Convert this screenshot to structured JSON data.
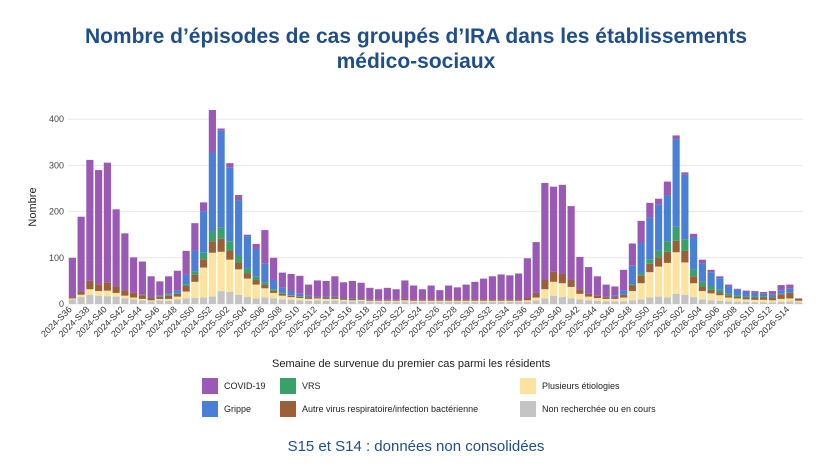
{
  "title_line1": "Nombre d’épisodes de cas groupés d’IRA dans les établissements",
  "title_line2": "médico-sociaux",
  "note": "S15 et S14 : données non consolidées",
  "legend_title": "Semaine de survenue du premier cas parmi les résidents",
  "colors": {
    "COVID-19": "#9b59b6",
    "Grippe": "#4a7fd6",
    "VRS": "#3aa06a",
    "Autre": "#9c6038",
    "Plusieurs": "#fde3a0",
    "NonRecherchee": "#c4c4c4"
  },
  "chart_data": {
    "type": "bar",
    "stacked": true,
    "ylabel": "Nombre",
    "xlabel": "Semaine de survenue du premier cas parmi les résidents",
    "ylim": [
      0,
      420
    ],
    "yticks": [
      0,
      100,
      200,
      300,
      400
    ],
    "grid": true,
    "legend_position": "bottom",
    "categories": [
      "2024-S36",
      "2024-S37",
      "2024-S38",
      "2024-S39",
      "2024-S40",
      "2024-S41",
      "2024-S42",
      "2024-S43",
      "2024-S44",
      "2024-S45",
      "2024-S46",
      "2024-S47",
      "2024-S48",
      "2024-S49",
      "2024-S50",
      "2024-S51",
      "2024-S52",
      "2025-S01",
      "2025-S02",
      "2025-S03",
      "2025-S04",
      "2025-S05",
      "2025-S06",
      "2025-S07",
      "2025-S08",
      "2025-S09",
      "2025-S10",
      "2025-S11",
      "2025-S12",
      "2025-S13",
      "2025-S14",
      "2025-S15",
      "2025-S16",
      "2025-S17",
      "2025-S18",
      "2025-S19",
      "2025-S20",
      "2025-S21",
      "2025-S22",
      "2025-S23",
      "2025-S24",
      "2025-S25",
      "2025-S26",
      "2025-S27",
      "2025-S28",
      "2025-S29",
      "2025-S30",
      "2025-S31",
      "2025-S32",
      "2025-S33",
      "2025-S34",
      "2025-S35",
      "2025-S36",
      "2025-S37",
      "2025-S38",
      "2025-S39",
      "2025-S40",
      "2025-S41",
      "2025-S42",
      "2025-S43",
      "2025-S44",
      "2025-S45",
      "2025-S46",
      "2025-S47",
      "2025-S48",
      "2025-S49",
      "2025-S50",
      "2025-S51",
      "2025-S52",
      "2026-S01",
      "2026-S02",
      "2026-S03",
      "2026-S04",
      "2026-S05",
      "2026-S06",
      "2026-S07",
      "2026-S08",
      "2026-S09",
      "2026-S10",
      "2026-S11",
      "2026-S12",
      "2026-S13",
      "2026-S14",
      "2026-S15"
    ],
    "tick_labels": [
      "2024-S36",
      "2024-S38",
      "2024-S40",
      "2024-S42",
      "2024-S44",
      "2024-S46",
      "2024-S48",
      "2024-S50",
      "2024-S52",
      "2025-S02",
      "2025-S04",
      "2025-S06",
      "2025-S08",
      "2025-S10",
      "2025-S12",
      "2025-S14",
      "2025-S16",
      "2025-S18",
      "2025-S20",
      "2025-S22",
      "2025-S24",
      "2025-S26",
      "2025-S28",
      "2025-S30",
      "2025-S32",
      "2025-S34",
      "2025-S36",
      "2025-S38",
      "2025-S40",
      "2025-S42",
      "2025-S44",
      "2025-S46",
      "2025-S48",
      "2025-S50",
      "2025-S52",
      "2026-S02",
      "2026-S04",
      "2026-S06",
      "2026-S08",
      "2026-S10",
      "2026-S12",
      "2026-S14"
    ],
    "series": [
      {
        "name": "Non recherchée ou en cours",
        "key": "NonRecherchee",
        "values": [
          10,
          15,
          20,
          18,
          17,
          16,
          12,
          10,
          8,
          6,
          8,
          7,
          10,
          12,
          13,
          14,
          16,
          28,
          26,
          20,
          15,
          12,
          14,
          12,
          10,
          9,
          8,
          7,
          8,
          7,
          8,
          6,
          6,
          7,
          5,
          5,
          5,
          5,
          6,
          5,
          5,
          5,
          5,
          5,
          5,
          5,
          5,
          5,
          5,
          5,
          5,
          5,
          5,
          8,
          12,
          18,
          15,
          12,
          10,
          8,
          7,
          6,
          6,
          6,
          8,
          10,
          14,
          16,
          14,
          22,
          20,
          15,
          10,
          8,
          7,
          6,
          5,
          5,
          4,
          4,
          4,
          5,
          6,
          4
        ]
      },
      {
        "name": "Plusieurs étiologies",
        "key": "Plusieurs",
        "values": [
          2,
          5,
          12,
          10,
          12,
          8,
          6,
          4,
          3,
          2,
          3,
          4,
          6,
          15,
          35,
          65,
          95,
          85,
          70,
          55,
          40,
          30,
          20,
          12,
          8,
          6,
          5,
          4,
          4,
          4,
          3,
          3,
          2,
          2,
          2,
          2,
          2,
          2,
          2,
          2,
          2,
          2,
          2,
          2,
          2,
          2,
          2,
          2,
          2,
          2,
          2,
          2,
          3,
          6,
          20,
          30,
          30,
          25,
          12,
          8,
          6,
          5,
          5,
          8,
          20,
          35,
          55,
          65,
          75,
          90,
          70,
          30,
          18,
          15,
          12,
          8,
          7,
          5,
          5,
          5,
          4,
          6,
          6,
          3
        ]
      },
      {
        "name": "Autre virus respiratoire/infection bactérienne",
        "key": "Autre",
        "values": [
          3,
          6,
          18,
          15,
          18,
          14,
          12,
          10,
          8,
          5,
          5,
          7,
          6,
          12,
          15,
          18,
          25,
          28,
          20,
          15,
          12,
          10,
          8,
          5,
          4,
          3,
          3,
          3,
          3,
          3,
          4,
          3,
          3,
          3,
          2,
          2,
          2,
          2,
          3,
          3,
          3,
          3,
          3,
          3,
          3,
          3,
          3,
          3,
          3,
          3,
          3,
          3,
          5,
          10,
          20,
          22,
          20,
          15,
          10,
          6,
          5,
          4,
          4,
          6,
          12,
          16,
          18,
          20,
          24,
          25,
          25,
          15,
          10,
          8,
          6,
          5,
          4,
          4,
          5,
          6,
          6,
          10,
          12,
          5
        ]
      },
      {
        "name": "VRS",
        "key": "VRS",
        "values": [
          0,
          0,
          0,
          0,
          0,
          0,
          0,
          0,
          1,
          1,
          1,
          2,
          2,
          4,
          8,
          14,
          22,
          24,
          20,
          15,
          10,
          7,
          5,
          3,
          2,
          1,
          1,
          1,
          0,
          0,
          0,
          0,
          0,
          0,
          0,
          0,
          0,
          0,
          0,
          0,
          0,
          0,
          0,
          0,
          0,
          0,
          0,
          0,
          0,
          0,
          0,
          0,
          0,
          0,
          0,
          0,
          0,
          0,
          0,
          0,
          0,
          0,
          0,
          0,
          3,
          6,
          10,
          14,
          22,
          30,
          25,
          15,
          10,
          8,
          6,
          4,
          3,
          2,
          2,
          2,
          1,
          1,
          1,
          0
        ]
      },
      {
        "name": "Grippe",
        "key": "Grippe",
        "values": [
          0,
          0,
          0,
          0,
          0,
          0,
          0,
          0,
          0,
          0,
          2,
          3,
          6,
          20,
          45,
          90,
          170,
          210,
          160,
          120,
          70,
          60,
          40,
          20,
          12,
          8,
          5,
          3,
          2,
          2,
          2,
          1,
          1,
          1,
          0,
          0,
          0,
          0,
          0,
          0,
          0,
          0,
          0,
          0,
          0,
          0,
          0,
          0,
          0,
          0,
          0,
          0,
          0,
          0,
          0,
          0,
          0,
          0,
          0,
          0,
          0,
          1,
          3,
          10,
          40,
          65,
          90,
          100,
          100,
          190,
          140,
          70,
          40,
          30,
          25,
          15,
          12,
          10,
          8,
          6,
          6,
          8,
          8,
          0
        ]
      },
      {
        "name": "COVID-19",
        "key": "COVID-19",
        "values": [
          85,
          163,
          262,
          247,
          259,
          167,
          123,
          77,
          72,
          46,
          30,
          37,
          42,
          52,
          59,
          19,
          92,
          5,
          9,
          11,
          3,
          11,
          73,
          48,
          32,
          38,
          39,
          24,
          34,
          34,
          43,
          34,
          38,
          33,
          26,
          23,
          26,
          23,
          40,
          30,
          22,
          30,
          20,
          30,
          26,
          32,
          38,
          45,
          50,
          54,
          52,
          56,
          86,
          110,
          210,
          184,
          193,
          160,
          70,
          58,
          42,
          26,
          20,
          44,
          48,
          48,
          32,
          13,
          30,
          8,
          5,
          7,
          8,
          5,
          4,
          4,
          2,
          3,
          4,
          3,
          7,
          11,
          9,
          0
        ]
      }
    ]
  }
}
